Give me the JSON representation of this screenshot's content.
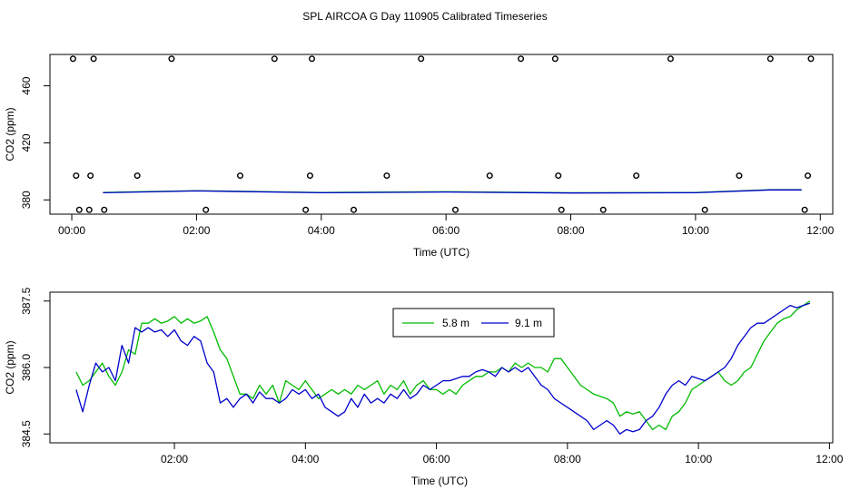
{
  "title": "SPL AIRCOA G  Day 110905  Calibrated Timeseries",
  "chart_data": [
    {
      "type": "scatter",
      "xlabel": "Time (UTC)",
      "ylabel": "CO2 (ppm)",
      "xlim": [
        -0.35,
        12.2
      ],
      "ylim": [
        370,
        482
      ],
      "xticks": [
        0,
        2,
        4,
        6,
        8,
        10,
        12
      ],
      "xtick_labels": [
        "00:00",
        "02:00",
        "04:00",
        "06:00",
        "08:00",
        "10:00",
        "12:00"
      ],
      "yticks": [
        380,
        420,
        460
      ],
      "ytick_labels": [
        "380",
        "420",
        "460"
      ],
      "points": {
        "high": {
          "y": 479,
          "x": [
            0.02,
            0.35,
            1.6,
            3.25,
            3.85,
            5.6,
            7.2,
            7.75,
            9.6,
            11.2,
            11.85
          ]
        },
        "mid": {
          "y": 397,
          "x": [
            0.07,
            0.3,
            1.05,
            2.7,
            3.82,
            5.05,
            6.7,
            7.8,
            9.05,
            10.7,
            11.8
          ]
        },
        "low": {
          "y": 373,
          "x": [
            0.12,
            0.28,
            0.52,
            2.15,
            3.75,
            4.52,
            6.15,
            7.85,
            8.52,
            10.15,
            11.75
          ]
        }
      },
      "series": [
        {
          "name": "5.8 m",
          "color": "#00bb00",
          "x": [
            0.5,
            2,
            4,
            6,
            8,
            10,
            11.2,
            11.7
          ],
          "y": [
            385.2,
            386.5,
            385.2,
            385.7,
            385.0,
            385.2,
            387.2,
            387.2
          ]
        },
        {
          "name": "9.1 m",
          "color": "#0000cc",
          "x": [
            0.5,
            2,
            4,
            6,
            8,
            10,
            11.2,
            11.7
          ],
          "y": [
            385.0,
            386.3,
            385.0,
            385.5,
            384.8,
            385.0,
            387.0,
            387.0
          ]
        }
      ]
    },
    {
      "type": "line",
      "xlabel": "Time (UTC)",
      "ylabel": "CO2 (ppm)",
      "xlim": [
        0.1,
        12.05
      ],
      "ylim": [
        384.3,
        387.7
      ],
      "xticks": [
        2,
        4,
        6,
        8,
        10,
        12
      ],
      "xtick_labels": [
        "02:00",
        "04:00",
        "06:00",
        "08:00",
        "10:00",
        "12:00"
      ],
      "yticks": [
        384.5,
        386.0,
        387.5
      ],
      "ytick_labels": [
        "384.5",
        "386.0",
        "387.5"
      ],
      "legend": {
        "position": "top-center",
        "entries": [
          "5.8 m",
          "9.1 m"
        ]
      },
      "series": [
        {
          "name": "5.8 m",
          "color": "#00bb00",
          "x": [
            0.5,
            0.6,
            0.7,
            0.8,
            0.9,
            1.0,
            1.1,
            1.2,
            1.3,
            1.4,
            1.5,
            1.6,
            1.7,
            1.8,
            1.9,
            2.0,
            2.1,
            2.2,
            2.3,
            2.4,
            2.5,
            2.6,
            2.7,
            2.8,
            2.9,
            3.0,
            3.1,
            3.2,
            3.3,
            3.4,
            3.5,
            3.6,
            3.7,
            3.8,
            3.9,
            4.0,
            4.1,
            4.2,
            4.3,
            4.4,
            4.5,
            4.6,
            4.7,
            4.8,
            4.9,
            5.0,
            5.1,
            5.2,
            5.3,
            5.4,
            5.5,
            5.6,
            5.7,
            5.8,
            5.9,
            6.0,
            6.1,
            6.2,
            6.3,
            6.4,
            6.5,
            6.6,
            6.7,
            6.8,
            6.9,
            7.0,
            7.1,
            7.2,
            7.3,
            7.4,
            7.5,
            7.6,
            7.7,
            7.8,
            7.9,
            8.0,
            8.1,
            8.2,
            8.3,
            8.4,
            8.5,
            8.6,
            8.7,
            8.8,
            8.9,
            9.0,
            9.1,
            9.2,
            9.3,
            9.4,
            9.5,
            9.6,
            9.7,
            9.8,
            9.9,
            10.0,
            10.1,
            10.2,
            10.3,
            10.4,
            10.5,
            10.6,
            10.7,
            10.8,
            10.9,
            11.0,
            11.1,
            11.2,
            11.3,
            11.4,
            11.5,
            11.6,
            11.7
          ],
          "y": [
            385.9,
            385.6,
            385.7,
            385.9,
            386.1,
            385.8,
            385.6,
            385.9,
            386.4,
            386.3,
            387.0,
            387.0,
            387.1,
            387.0,
            387.05,
            387.15,
            387.0,
            387.1,
            387.0,
            387.05,
            387.15,
            386.8,
            386.4,
            386.2,
            385.8,
            385.4,
            385.4,
            385.3,
            385.6,
            385.4,
            385.6,
            385.2,
            385.7,
            385.6,
            385.5,
            385.7,
            385.5,
            385.3,
            385.4,
            385.5,
            385.4,
            385.5,
            385.4,
            385.6,
            385.5,
            385.6,
            385.7,
            385.4,
            385.6,
            385.5,
            385.7,
            385.4,
            385.6,
            385.7,
            385.5,
            385.5,
            385.4,
            385.5,
            385.4,
            385.6,
            385.7,
            385.8,
            385.8,
            385.9,
            385.9,
            386.0,
            385.9,
            386.1,
            386.0,
            386.1,
            386.0,
            386.0,
            385.9,
            386.2,
            386.2,
            386.0,
            385.8,
            385.6,
            385.5,
            385.4,
            385.35,
            385.3,
            385.2,
            384.9,
            385.0,
            384.95,
            385.0,
            384.8,
            384.6,
            384.7,
            384.6,
            384.9,
            385.0,
            385.2,
            385.5,
            385.6,
            385.7,
            385.8,
            385.9,
            385.7,
            385.6,
            385.7,
            385.9,
            386.0,
            386.3,
            386.6,
            386.8,
            387.0,
            387.1,
            387.15,
            387.3,
            387.4,
            387.5
          ]
        },
        {
          "name": "9.1 m",
          "color": "#0000cc",
          "x": [
            0.5,
            0.6,
            0.7,
            0.8,
            0.9,
            1.0,
            1.1,
            1.2,
            1.3,
            1.4,
            1.5,
            1.6,
            1.7,
            1.8,
            1.9,
            2.0,
            2.1,
            2.2,
            2.3,
            2.4,
            2.5,
            2.6,
            2.7,
            2.8,
            2.9,
            3.0,
            3.1,
            3.2,
            3.3,
            3.4,
            3.5,
            3.6,
            3.7,
            3.8,
            3.9,
            4.0,
            4.1,
            4.2,
            4.3,
            4.4,
            4.5,
            4.6,
            4.7,
            4.8,
            4.9,
            5.0,
            5.1,
            5.2,
            5.3,
            5.4,
            5.5,
            5.6,
            5.7,
            5.8,
            5.9,
            6.0,
            6.1,
            6.2,
            6.3,
            6.4,
            6.5,
            6.6,
            6.7,
            6.8,
            6.9,
            7.0,
            7.1,
            7.2,
            7.3,
            7.4,
            7.5,
            7.6,
            7.7,
            7.8,
            7.9,
            8.0,
            8.1,
            8.2,
            8.3,
            8.4,
            8.5,
            8.6,
            8.7,
            8.8,
            8.9,
            9.0,
            9.1,
            9.2,
            9.3,
            9.4,
            9.5,
            9.6,
            9.7,
            9.8,
            9.9,
            10.0,
            10.1,
            10.2,
            10.3,
            10.4,
            10.5,
            10.6,
            10.7,
            10.8,
            10.9,
            11.0,
            11.1,
            11.2,
            11.3,
            11.4,
            11.5,
            11.6,
            11.7
          ],
          "y": [
            385.5,
            385.0,
            385.6,
            386.1,
            385.9,
            386.0,
            385.7,
            386.5,
            386.1,
            386.9,
            386.8,
            386.9,
            386.8,
            386.85,
            386.7,
            386.85,
            386.6,
            386.5,
            386.7,
            386.6,
            386.1,
            385.9,
            385.2,
            385.3,
            385.1,
            385.3,
            385.4,
            385.2,
            385.45,
            385.3,
            385.3,
            385.2,
            385.3,
            385.5,
            385.4,
            385.5,
            385.3,
            385.4,
            385.1,
            385.0,
            384.9,
            385.0,
            385.3,
            385.1,
            385.4,
            385.2,
            385.3,
            385.2,
            385.4,
            385.3,
            385.5,
            385.3,
            385.4,
            385.6,
            385.5,
            385.6,
            385.7,
            385.7,
            385.75,
            385.8,
            385.8,
            385.9,
            385.95,
            385.9,
            385.8,
            386.0,
            385.9,
            386.0,
            385.9,
            386.0,
            385.8,
            385.6,
            385.5,
            385.3,
            385.2,
            385.1,
            385.0,
            384.9,
            384.8,
            384.6,
            384.7,
            384.8,
            384.7,
            384.5,
            384.6,
            384.55,
            384.6,
            384.8,
            384.9,
            385.1,
            385.4,
            385.6,
            385.7,
            385.6,
            385.8,
            385.75,
            385.7,
            385.8,
            385.9,
            386.0,
            386.2,
            386.5,
            386.7,
            386.9,
            387.0,
            387.0,
            387.1,
            387.2,
            387.3,
            387.4,
            387.35,
            387.4,
            387.45
          ]
        }
      ]
    }
  ]
}
